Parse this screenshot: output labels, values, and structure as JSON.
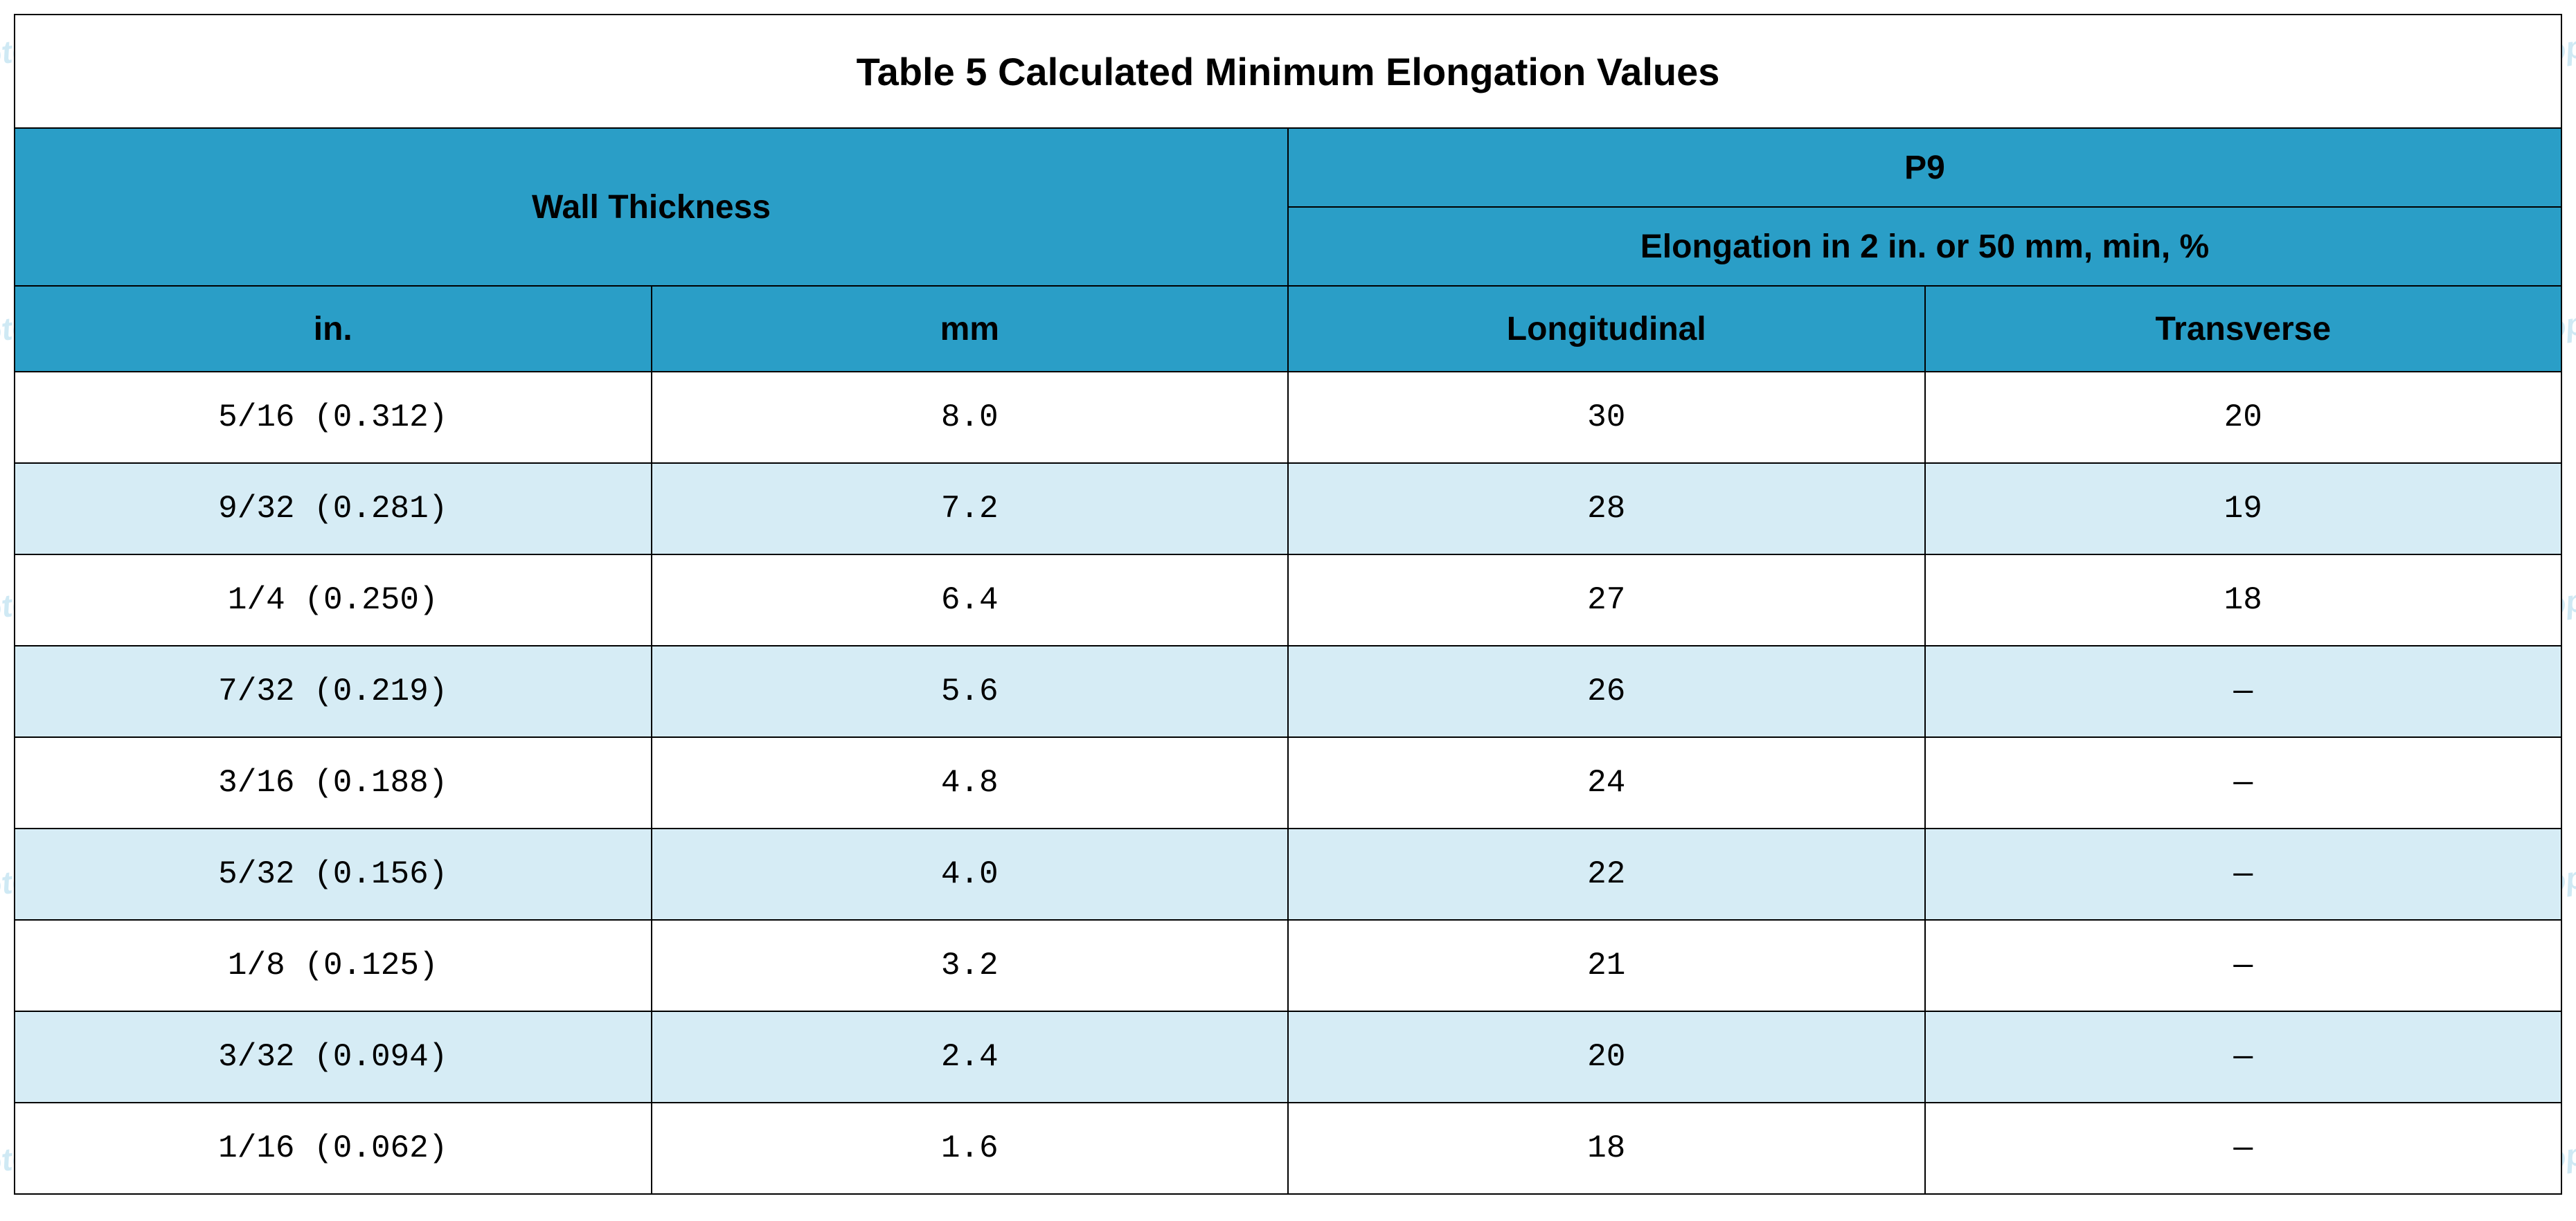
{
  "watermark": {
    "text": "Botop Steel",
    "color": "#57b3d8",
    "opacity": 0.28,
    "positions": [
      [
        -60,
        20
      ],
      [
        460,
        20
      ],
      [
        990,
        20
      ],
      [
        1510,
        20
      ],
      [
        2040,
        20
      ],
      [
        2560,
        20
      ],
      [
        3090,
        20
      ],
      [
        3600,
        20
      ],
      [
        -60,
        420
      ],
      [
        460,
        420
      ],
      [
        990,
        420
      ],
      [
        1510,
        420
      ],
      [
        2040,
        420
      ],
      [
        2560,
        420
      ],
      [
        3090,
        420
      ],
      [
        3600,
        420
      ],
      [
        -60,
        820
      ],
      [
        460,
        820
      ],
      [
        990,
        820
      ],
      [
        1510,
        820
      ],
      [
        2040,
        820
      ],
      [
        2560,
        820
      ],
      [
        3090,
        820
      ],
      [
        3600,
        820
      ],
      [
        -60,
        1220
      ],
      [
        460,
        1220
      ],
      [
        990,
        1220
      ],
      [
        1510,
        1220
      ],
      [
        2040,
        1220
      ],
      [
        2560,
        1220
      ],
      [
        3090,
        1220
      ],
      [
        3600,
        1220
      ],
      [
        -60,
        1620
      ],
      [
        460,
        1620
      ],
      [
        990,
        1620
      ],
      [
        1510,
        1620
      ],
      [
        2040,
        1620
      ],
      [
        2560,
        1620
      ],
      [
        3090,
        1620
      ],
      [
        3600,
        1620
      ]
    ]
  },
  "table": {
    "title": "Table 5 Calculated Minimum Elongation Values",
    "header": {
      "wall_thickness": "Wall Thickness",
      "grade": "P9",
      "elong_label": "Elongation in 2 in. or 50 mm, min, %",
      "col_in": "in.",
      "col_mm": "mm",
      "col_long": "Longitudinal",
      "col_trans": "Transverse"
    },
    "colors": {
      "header_bg": "#2a9ec7",
      "stripe_bg": "#d6ecf5",
      "plain_bg": "#ffffff",
      "border": "#000000",
      "text": "#000000"
    },
    "column_widths_pct": [
      25,
      25,
      25,
      25
    ],
    "rows": [
      {
        "in": "5/16 (0.312)",
        "mm": "8.0",
        "long": "30",
        "trans": "20"
      },
      {
        "in": "9/32 (0.281)",
        "mm": "7.2",
        "long": "28",
        "trans": "19"
      },
      {
        "in": "1/4 (0.250)",
        "mm": "6.4",
        "long": "27",
        "trans": "18"
      },
      {
        "in": "7/32 (0.219)",
        "mm": "5.6",
        "long": "26",
        "trans": "—"
      },
      {
        "in": "3/16 (0.188)",
        "mm": "4.8",
        "long": "24",
        "trans": "—"
      },
      {
        "in": "5/32 (0.156)",
        "mm": "4.0",
        "long": "22",
        "trans": "—"
      },
      {
        "in": "1/8 (0.125)",
        "mm": "3.2",
        "long": "21",
        "trans": "—"
      },
      {
        "in": "3/32 (0.094)",
        "mm": "2.4",
        "long": "20",
        "trans": "—"
      },
      {
        "in": "1/16 (0.062)",
        "mm": "1.6",
        "long": "18",
        "trans": "—"
      }
    ]
  }
}
